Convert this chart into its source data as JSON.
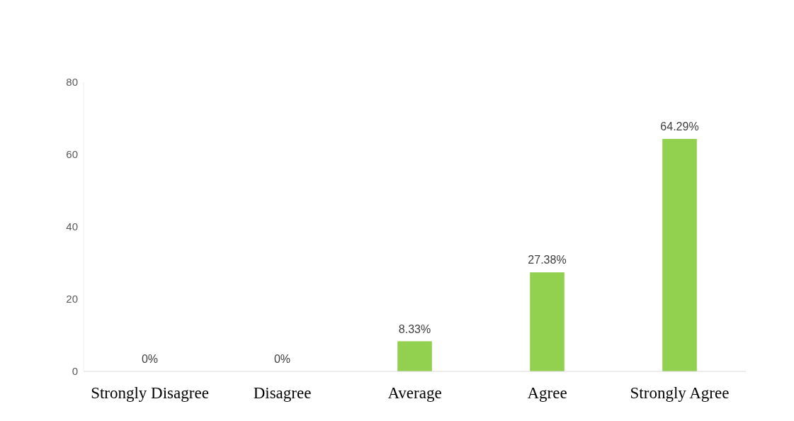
{
  "chart_data": {
    "type": "bar",
    "categories": [
      "Strongly Disagree",
      "Disagree",
      "Average",
      "Agree",
      "Strongly Agree"
    ],
    "values": [
      0,
      0,
      8.33,
      27.38,
      64.29
    ],
    "value_labels": [
      "0%",
      "0%",
      "8.33%",
      "27.38%",
      "64.29%"
    ],
    "color": "#92d050",
    "ylim": [
      0,
      80
    ],
    "yticks": [
      0,
      20,
      40,
      60,
      80
    ],
    "grid": false,
    "legend": false
  }
}
